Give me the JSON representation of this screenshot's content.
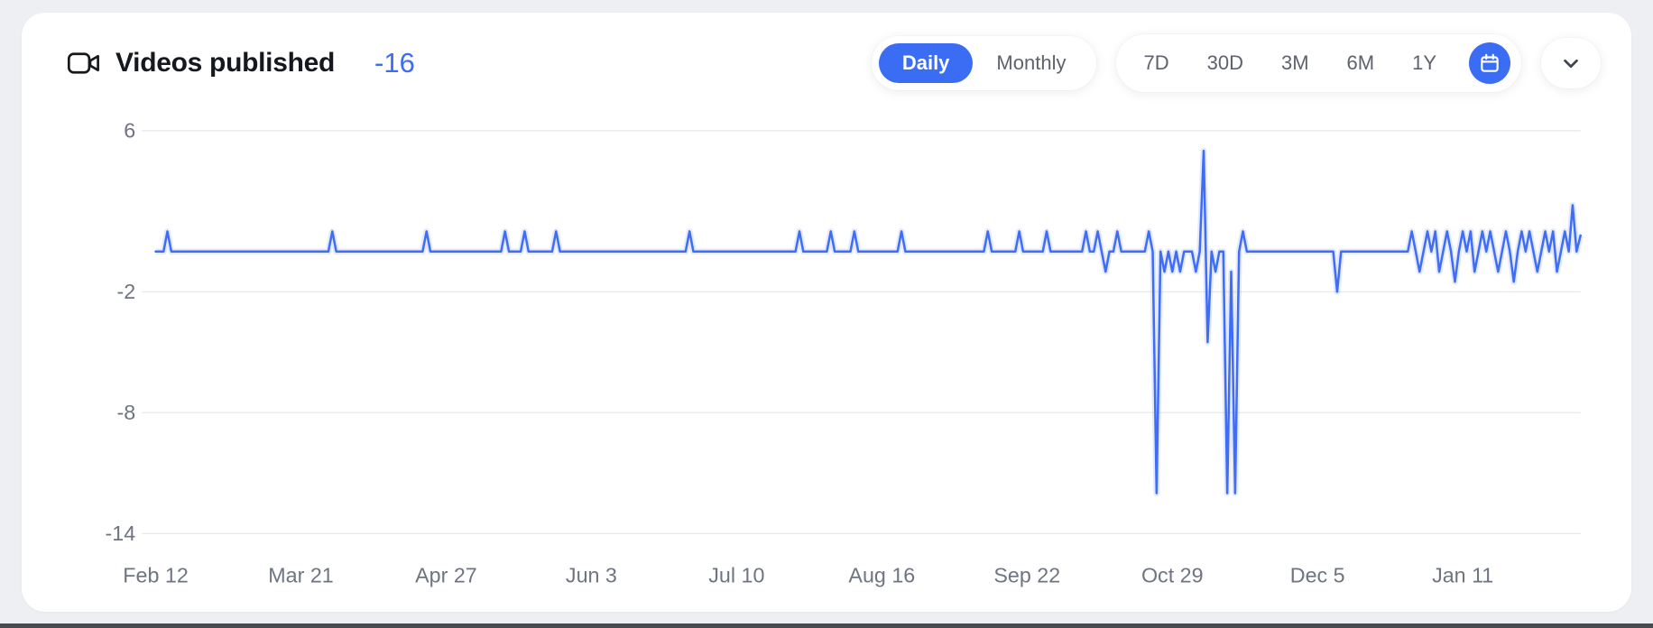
{
  "page": {
    "background": "#edeff3"
  },
  "header": {
    "title": "Videos published",
    "value": "-16",
    "view_toggle": {
      "options": [
        "Daily",
        "Monthly"
      ],
      "selected": "Daily"
    },
    "range_selector": {
      "options": [
        "7D",
        "30D",
        "3M",
        "6M",
        "1Y"
      ],
      "selected": "calendar"
    },
    "icons": {
      "title_icon": "video-camera",
      "calendar": "calendar",
      "collapse": "chevron-down"
    }
  },
  "colors": {
    "accent": "#3b6cf4",
    "line": "#3f6df5",
    "card_bg": "#ffffff",
    "page_bg": "#edeff3",
    "title_text": "#15181e",
    "muted_text": "#5d626d",
    "axis_text": "#6e7480",
    "gridline": "#e8eaee"
  },
  "chart_data": {
    "type": "line",
    "title": "Videos published",
    "series_name": "Videos published per day",
    "x_unit": "day",
    "n_points": 364,
    "baseline_value": 0,
    "x_tick_days": [
      0,
      37,
      74,
      111,
      148,
      185,
      222,
      259,
      296,
      333
    ],
    "x_tick_labels": [
      "Feb 12",
      "Mar 21",
      "Apr 27",
      "Jun 3",
      "Jul 10",
      "Aug 16",
      "Sep 22",
      "Oct 29",
      "Dec 5",
      "Jan 11"
    ],
    "y_ticks": [
      6,
      -2,
      -8,
      -14
    ],
    "ylim": [
      -14,
      6
    ],
    "grid": "horizontal",
    "legend": "none",
    "series_color": "#3f6df5",
    "spikes": [
      {
        "day": 3,
        "value": 1
      },
      {
        "day": 45,
        "value": 1
      },
      {
        "day": 69,
        "value": 1
      },
      {
        "day": 89,
        "value": 1
      },
      {
        "day": 94,
        "value": 1
      },
      {
        "day": 102,
        "value": 1
      },
      {
        "day": 136,
        "value": 1
      },
      {
        "day": 164,
        "value": 1
      },
      {
        "day": 172,
        "value": 1
      },
      {
        "day": 178,
        "value": 1
      },
      {
        "day": 190,
        "value": 1
      },
      {
        "day": 212,
        "value": 1
      },
      {
        "day": 220,
        "value": 1
      },
      {
        "day": 227,
        "value": 1
      },
      {
        "day": 237,
        "value": 1
      },
      {
        "day": 240,
        "value": 1
      },
      {
        "day": 242,
        "value": -1
      },
      {
        "day": 245,
        "value": 1
      },
      {
        "day": 253,
        "value": 1
      },
      {
        "day": 255,
        "value": -12
      },
      {
        "day": 257,
        "value": -1
      },
      {
        "day": 259,
        "value": -1
      },
      {
        "day": 261,
        "value": -1
      },
      {
        "day": 265,
        "value": -1
      },
      {
        "day": 267,
        "value": 5
      },
      {
        "day": 268,
        "value": -4.5
      },
      {
        "day": 270,
        "value": -1
      },
      {
        "day": 273,
        "value": -12
      },
      {
        "day": 274,
        "value": -1
      },
      {
        "day": 275,
        "value": -12
      },
      {
        "day": 277,
        "value": 1
      },
      {
        "day": 301,
        "value": -2
      },
      {
        "day": 320,
        "value": 1
      },
      {
        "day": 322,
        "value": -1
      },
      {
        "day": 324,
        "value": 1
      },
      {
        "day": 326,
        "value": 1
      },
      {
        "day": 327,
        "value": -1
      },
      {
        "day": 329,
        "value": 1
      },
      {
        "day": 331,
        "value": -1.5
      },
      {
        "day": 333,
        "value": 1
      },
      {
        "day": 335,
        "value": 1
      },
      {
        "day": 336,
        "value": -1
      },
      {
        "day": 338,
        "value": 1
      },
      {
        "day": 340,
        "value": 1
      },
      {
        "day": 342,
        "value": -1
      },
      {
        "day": 344,
        "value": 1
      },
      {
        "day": 346,
        "value": -1.5
      },
      {
        "day": 348,
        "value": 1
      },
      {
        "day": 350,
        "value": 1
      },
      {
        "day": 352,
        "value": -1
      },
      {
        "day": 354,
        "value": 1
      },
      {
        "day": 356,
        "value": 1
      },
      {
        "day": 357,
        "value": -1
      },
      {
        "day": 359,
        "value": 1
      },
      {
        "day": 361,
        "value": 2.3
      },
      {
        "day": 363,
        "value": 0.8
      }
    ]
  }
}
